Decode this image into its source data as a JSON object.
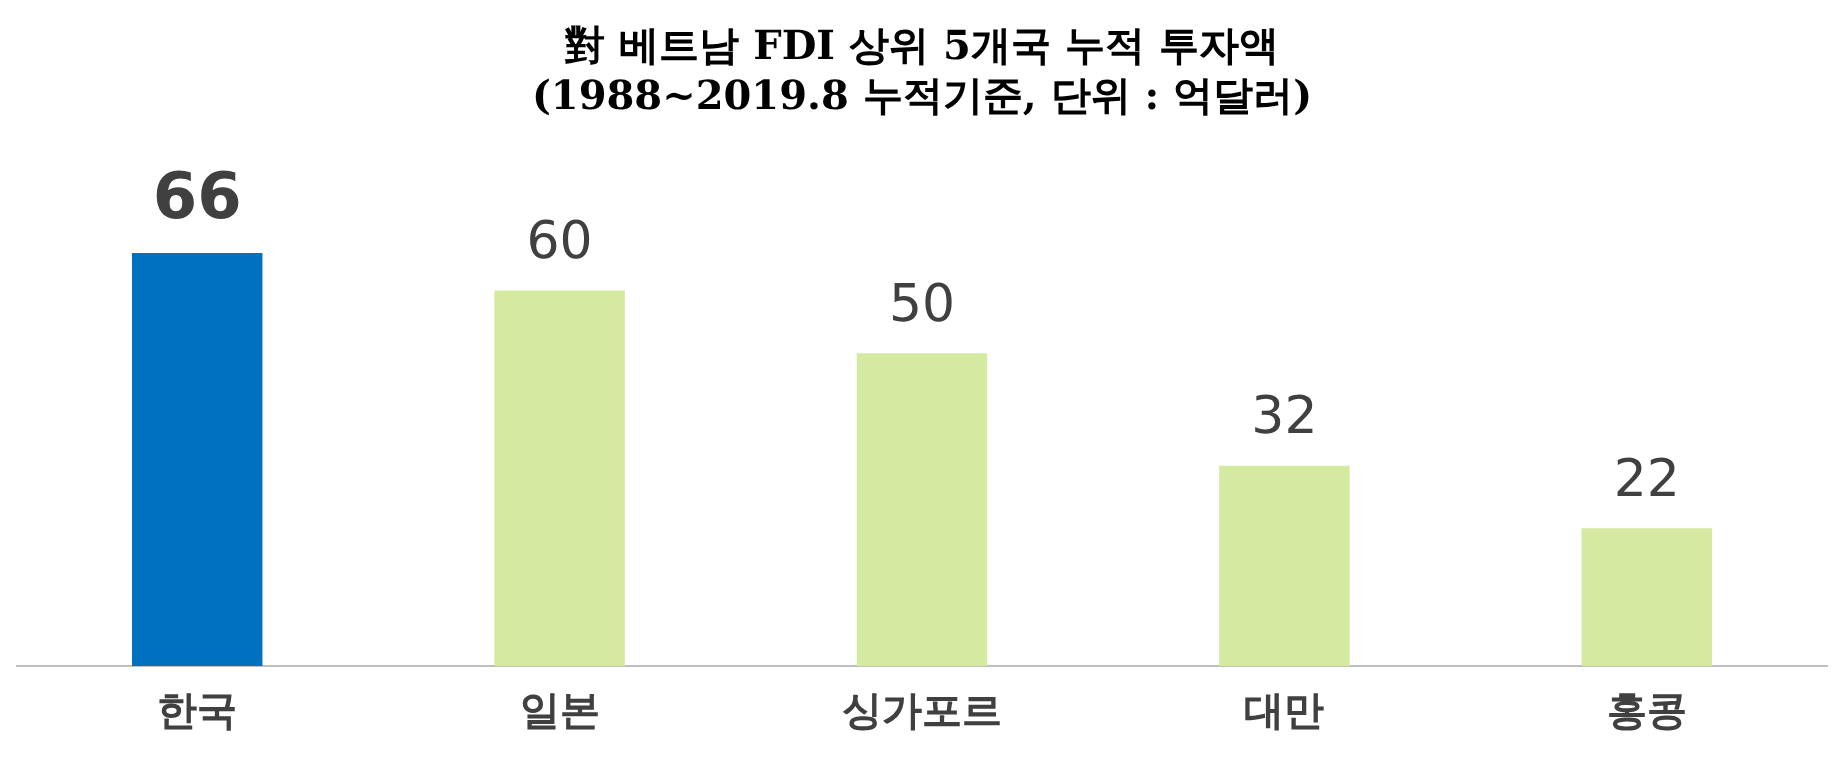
{
  "chart_data": {
    "type": "bar",
    "title": "對 베트남 FDI 상위 5개국 누적 투자액",
    "subtitle": "(1988~2019.8 누적기준, 단위 : 억달러)",
    "categories": [
      "한국",
      "일본",
      "싱가포르",
      "대만",
      "홍콩"
    ],
    "values": [
      66,
      60,
      50,
      32,
      22
    ],
    "colors": [
      "#0070c0",
      "#d3eaa0",
      "#d3eaa0",
      "#d3eaa0",
      "#d3eaa0"
    ],
    "data_labels": true,
    "grid": false,
    "legend": false
  }
}
